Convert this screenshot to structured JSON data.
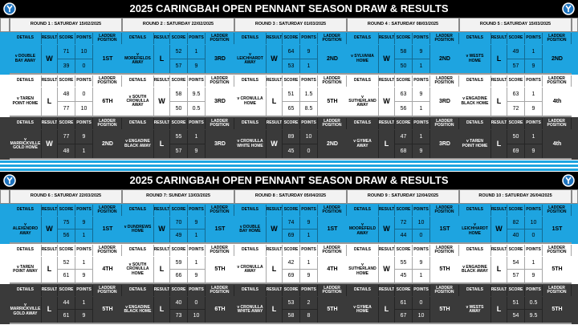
{
  "column_headers": [
    "DETAILS",
    "RESULT",
    "SCORE",
    "POINTS",
    "LADDER POSITION"
  ],
  "sections": [
    {
      "title": "2025 CARINGBAH OPEN PENNANT SEASON DRAW & RESULTS",
      "rounds": [
        {
          "label": "ROUND 1 : SATURDAY 15/02/2025",
          "games": [
            {
              "details": "v DOUBLE BAY AWAY",
              "result": "W",
              "scores": [
                71,
                39
              ],
              "points": [
                10,
                0
              ],
              "ladder": "1ST"
            },
            {
              "details": "v TAREN POINT HOME",
              "result": "L",
              "scores": [
                48,
                77
              ],
              "points": [
                0,
                10
              ],
              "ladder": "6TH"
            },
            {
              "details": "v MARRICKVILLE GOLD HOME",
              "result": "W",
              "scores": [
                77,
                48
              ],
              "points": [
                9,
                1
              ],
              "ladder": "2ND"
            }
          ]
        },
        {
          "label": "ROUND 2 : SATURDAY 22/02/2025",
          "games": [
            {
              "details": "v MOREFIELDS AWAY",
              "result": "L",
              "scores": [
                52,
                57
              ],
              "points": [
                1,
                9
              ],
              "ladder": "3RD"
            },
            {
              "details": "v SOUTH CRONULLA AWAY",
              "result": "W",
              "scores": [
                58,
                50
              ],
              "points": [
                9.5,
                0.5
              ],
              "ladder": "3RD"
            },
            {
              "details": "v ENGADINE BLACK AWAY",
              "result": "L",
              "scores": [
                55,
                57
              ],
              "points": [
                1,
                9
              ],
              "ladder": "3RD"
            }
          ]
        },
        {
          "label": "ROUND 3 : SATURDAY 01/03/2025",
          "games": [
            {
              "details": "v LEICHHARDT AWAY",
              "result": "W",
              "scores": [
                64,
                53
              ],
              "points": [
                9,
                1
              ],
              "ladder": "2ND"
            },
            {
              "details": "v CRONULLA HOME",
              "result": "L",
              "scores": [
                51,
                65
              ],
              "points": [
                1.5,
                8.5
              ],
              "ladder": "5TH"
            },
            {
              "details": "v CRONULLA WHITE HOME",
              "result": "W",
              "scores": [
                89,
                45
              ],
              "points": [
                10,
                0
              ],
              "ladder": "2ND"
            }
          ]
        },
        {
          "label": "ROUND 4 : SATURDAY 08/03/2025",
          "games": [
            {
              "details": "v SYLVANIA HOME",
              "result": "W",
              "scores": [
                58,
                50
              ],
              "points": [
                9,
                1
              ],
              "ladder": "2ND"
            },
            {
              "details": "v SUTHERLAND AWAY",
              "result": "W",
              "scores": [
                63,
                56
              ],
              "points": [
                9,
                1
              ],
              "ladder": "3RD"
            },
            {
              "details": "v GYMEA AWAY",
              "result": "L",
              "scores": [
                47,
                68
              ],
              "points": [
                1,
                9
              ],
              "ladder": "3RD"
            }
          ]
        },
        {
          "label": "ROUND 5 : SATURDAY 15/03/2025",
          "games": [
            {
              "details": "v WESTS HOME",
              "result": "L",
              "scores": [
                49,
                57
              ],
              "points": [
                1,
                9
              ],
              "ladder": "2ND"
            },
            {
              "details": "v ENGADINE BLACK HOME",
              "result": "L",
              "scores": [
                63,
                72
              ],
              "points": [
                1,
                9
              ],
              "ladder": "4th"
            },
            {
              "details": "v TAREN POINT HOME",
              "result": "L",
              "scores": [
                50,
                69
              ],
              "points": [
                1,
                9
              ],
              "ladder": "4th"
            }
          ]
        }
      ]
    },
    {
      "title": "2025 CARINGBAH OPEN PENNANT SEASON DRAW & RESULTS",
      "rounds": [
        {
          "label": "ROUND 6 : SATURDAY 22/03/2025",
          "games": [
            {
              "details": "v ALEXENDRO AWAY",
              "result": "W",
              "scores": [
                75,
                56
              ],
              "points": [
                9,
                1
              ],
              "ladder": "1ST"
            },
            {
              "details": "v TAREN POINT AWAY",
              "result": "L",
              "scores": [
                52,
                61
              ],
              "points": [
                1,
                9
              ],
              "ladder": "4TH"
            },
            {
              "details": "v MARRICKVILLE GOLD AWAY",
              "result": "L",
              "scores": [
                44,
                61
              ],
              "points": [
                1,
                9
              ],
              "ladder": "5TH"
            }
          ]
        },
        {
          "label": "ROUND 7: SUNDAY 13/03/2025",
          "games": [
            {
              "details": "v DUNDREWS HOME",
              "result": "W",
              "scores": [
                70,
                49
              ],
              "points": [
                9,
                1
              ],
              "ladder": "1ST"
            },
            {
              "details": "v SOUTH CRONULLA HOME",
              "result": "L",
              "scores": [
                59,
                66
              ],
              "points": [
                1,
                9
              ],
              "ladder": "5TH"
            },
            {
              "details": "v ENGADINE BLACK HOME",
              "result": "L",
              "scores": [
                40,
                73
              ],
              "points": [
                0,
                10
              ],
              "ladder": "6TH"
            }
          ]
        },
        {
          "label": "ROUND 8 : SATURDAY 05/04/2025",
          "games": [
            {
              "details": "v DOUBLE BAY HOME",
              "result": "W",
              "scores": [
                74,
                69
              ],
              "points": [
                9,
                1
              ],
              "ladder": "1ST"
            },
            {
              "details": "v CRONULLA AWAY",
              "result": "L",
              "scores": [
                42,
                69
              ],
              "points": [
                1,
                9
              ],
              "ladder": "4TH"
            },
            {
              "details": "v CRONULLA WHITE AWAY",
              "result": "L",
              "scores": [
                53,
                58
              ],
              "points": [
                2,
                8
              ],
              "ladder": "5TH"
            }
          ]
        },
        {
          "label": "ROUND 9 : SATURDAY 12/04/2025",
          "games": [
            {
              "details": "v MOOREFEILD AWAY",
              "result": "W",
              "scores": [
                72,
                44
              ],
              "points": [
                10,
                0
              ],
              "ladder": "1ST"
            },
            {
              "details": "v SUTHERLAND HOME",
              "result": "W",
              "scores": [
                55,
                45
              ],
              "points": [
                9,
                1
              ],
              "ladder": "5TH"
            },
            {
              "details": "v GYMEA HOME",
              "result": "L",
              "scores": [
                61,
                67
              ],
              "points": [
                0,
                10
              ],
              "ladder": "5TH"
            }
          ]
        },
        {
          "label": "ROUND 10 : SATURDAY 26/04/2025",
          "games": [
            {
              "details": "v LEICHHARDT HOME",
              "result": "W",
              "scores": [
                82,
                40
              ],
              "points": [
                10,
                0
              ],
              "ladder": "1ST"
            },
            {
              "details": "v ENGADINE BLACK AWAY",
              "result": "L",
              "scores": [
                54,
                57
              ],
              "points": [
                1,
                9
              ],
              "ladder": "5TH"
            },
            {
              "details": "v WESTS AWAY",
              "result": "L",
              "scores": [
                51,
                54
              ],
              "points": [
                0.5,
                9.5
              ],
              "ladder": "5TH"
            }
          ]
        }
      ]
    }
  ]
}
